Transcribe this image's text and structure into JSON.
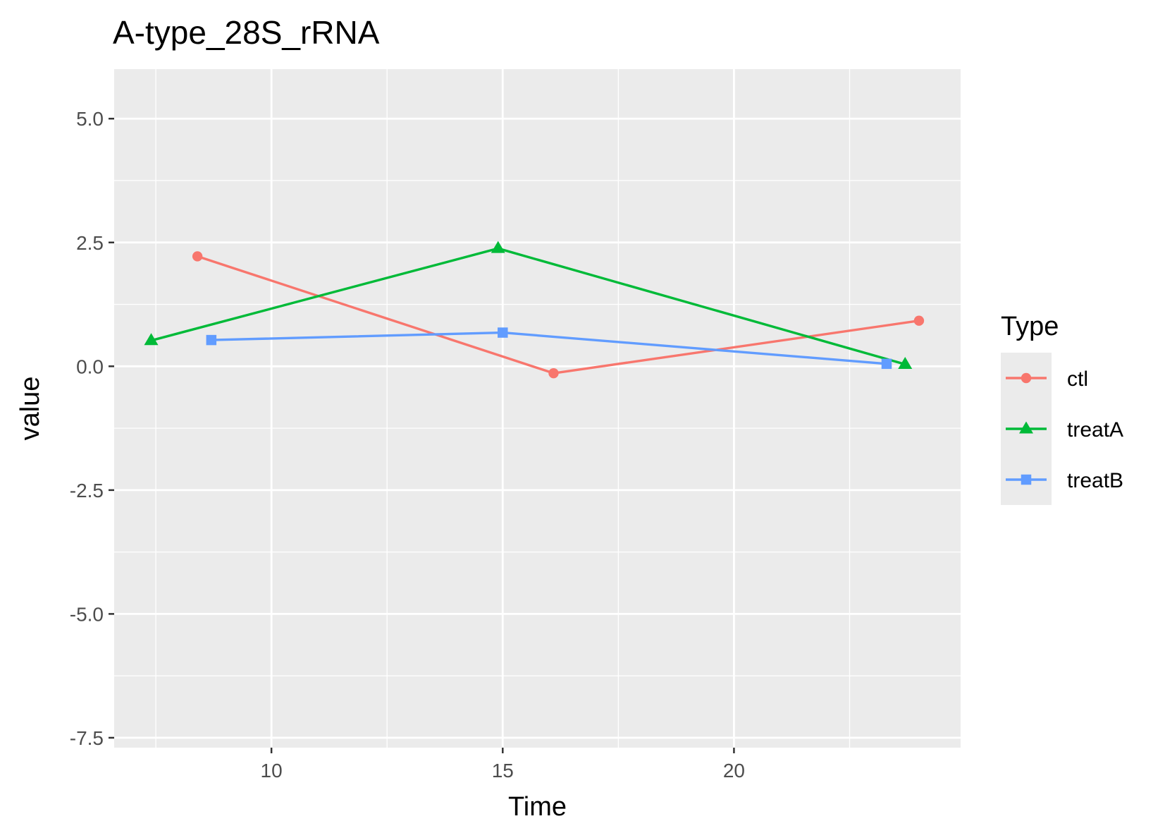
{
  "chart_data": {
    "type": "line",
    "title": "A-type_28S_rRNA",
    "xlabel": "Time",
    "ylabel": "value",
    "xlim": [
      6.6,
      24.9
    ],
    "ylim": [
      -7.7,
      6.0
    ],
    "x_ticks": [
      10,
      15,
      20
    ],
    "x_tick_labels": [
      "10",
      "15",
      "20"
    ],
    "y_ticks": [
      5.0,
      2.5,
      0.0,
      -2.5,
      -5.0,
      -7.5
    ],
    "y_tick_labels": [
      "5.0",
      "2.5",
      "0.0",
      "-2.5",
      "-5.0",
      "-7.5"
    ],
    "grid": true,
    "legend": {
      "title": "Type",
      "position": "right"
    },
    "series": [
      {
        "name": "ctl",
        "color": "#F8766D",
        "marker": "circle",
        "x": [
          8.4,
          16.1,
          24.0
        ],
        "y": [
          2.22,
          -0.14,
          0.92
        ]
      },
      {
        "name": "treatA",
        "color": "#00BA38",
        "marker": "triangle",
        "x": [
          7.4,
          14.9,
          23.7
        ],
        "y": [
          0.52,
          2.38,
          0.04
        ]
      },
      {
        "name": "treatB",
        "color": "#619CFF",
        "marker": "square",
        "x": [
          8.7,
          15.0,
          23.3
        ],
        "y": [
          0.53,
          0.68,
          0.05
        ]
      }
    ]
  }
}
